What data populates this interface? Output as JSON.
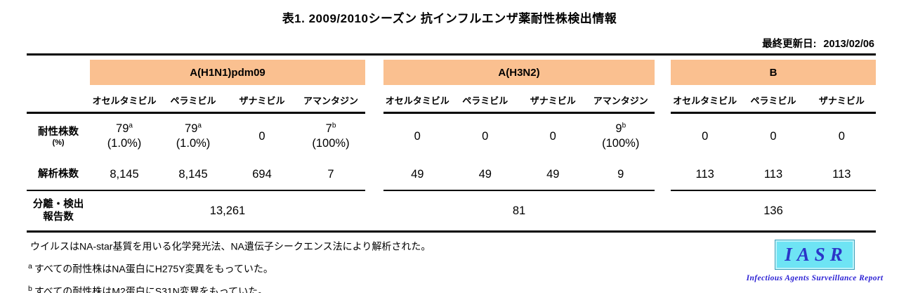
{
  "page": {
    "title": "表1. 2009/2010シーズン 抗インフルエンザ薬耐性株検出情報",
    "last_updated_label": "最終更新日:",
    "last_updated_value": "2013/02/06"
  },
  "table": {
    "header_bg": "#FAC090",
    "row_labels": {
      "resistant_line1": "耐性株数",
      "resistant_line2": "(%)",
      "analyzed": "解析株数",
      "reported_line1": "分離・検出",
      "reported_line2": "報告数"
    },
    "groups": [
      {
        "name": "A(H1N1)pdm09",
        "drugs": [
          "オセルタミビル",
          "ペラミビル",
          "ザナミビル",
          "アマンタジン"
        ],
        "resistant": [
          {
            "value": "79",
            "sup": "a",
            "pct": "(1.0%)"
          },
          {
            "value": "79",
            "sup": "a",
            "pct": "(1.0%)"
          },
          {
            "value": "0",
            "sup": "",
            "pct": ""
          },
          {
            "value": "7",
            "sup": "b",
            "pct": "(100%)"
          }
        ],
        "analyzed": [
          "8,145",
          "8,145",
          "694",
          "7"
        ],
        "reported": "13,261"
      },
      {
        "name": "A(H3N2)",
        "drugs": [
          "オセルタミビル",
          "ペラミビル",
          "ザナミビル",
          "アマンタジン"
        ],
        "resistant": [
          {
            "value": "0",
            "sup": "",
            "pct": ""
          },
          {
            "value": "0",
            "sup": "",
            "pct": ""
          },
          {
            "value": "0",
            "sup": "",
            "pct": ""
          },
          {
            "value": "9",
            "sup": "b",
            "pct": "(100%)"
          }
        ],
        "analyzed": [
          "49",
          "49",
          "49",
          "9"
        ],
        "reported": "81"
      },
      {
        "name": "B",
        "drugs": [
          "オセルタミビル",
          "ペラミビル",
          "ザナミビル"
        ],
        "resistant": [
          {
            "value": "0",
            "sup": "",
            "pct": ""
          },
          {
            "value": "0",
            "sup": "",
            "pct": ""
          },
          {
            "value": "0",
            "sup": "",
            "pct": ""
          }
        ],
        "analyzed": [
          "113",
          "113",
          "113"
        ],
        "reported": "136"
      }
    ]
  },
  "footnotes": [
    {
      "sup": "",
      "text": "ウイルスはNA-star基質を用いる化学発光法、NA遺伝子シークエンス法により解析された。"
    },
    {
      "sup": "a",
      "text": "すべての耐性株はNA蛋白にH275Y変異をもっていた。"
    },
    {
      "sup": "b",
      "text": "すべての耐性株はM2蛋白にS31N変異をもっていた。"
    }
  ],
  "logo": {
    "acronym": "IASR",
    "caption": "Infectious Agents Surveillance Report",
    "box_color": "#6EE4F4",
    "border_color": "#3F9FB8",
    "acronym_color": "#2B35C8",
    "caption_color": "#2A1FD4"
  }
}
